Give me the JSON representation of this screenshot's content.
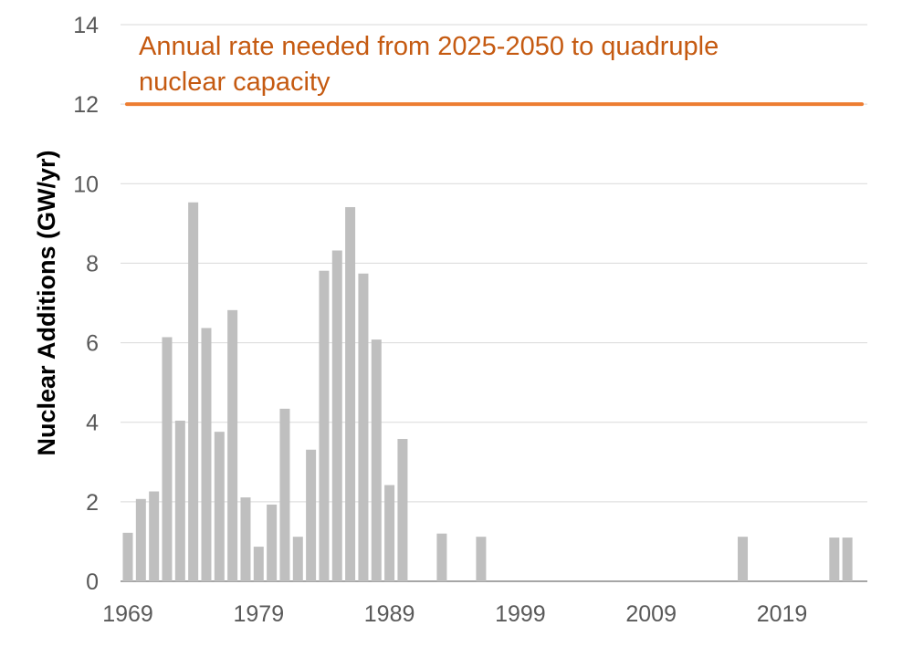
{
  "chart_data": {
    "type": "bar",
    "title": "",
    "xlabel": "",
    "ylabel": "Nuclear Additions (GW/yr)",
    "ylim": [
      0,
      14
    ],
    "xlim": [
      1969,
      2025
    ],
    "y_ticks": [
      "0",
      "2",
      "4",
      "6",
      "8",
      "10",
      "12",
      "14"
    ],
    "x_ticks": [
      "1969",
      "1979",
      "1989",
      "1999",
      "2009",
      "2019"
    ],
    "grid": true,
    "x": [
      1969,
      1970,
      1971,
      1972,
      1973,
      1974,
      1975,
      1976,
      1977,
      1978,
      1979,
      1980,
      1981,
      1982,
      1983,
      1984,
      1985,
      1986,
      1987,
      1988,
      1989,
      1990,
      1993,
      1996,
      2016,
      2023,
      2024
    ],
    "values": [
      1.22,
      2.07,
      2.26,
      6.14,
      4.04,
      9.53,
      6.37,
      3.76,
      6.82,
      2.11,
      0.87,
      1.93,
      4.34,
      1.12,
      3.31,
      7.81,
      8.32,
      9.41,
      7.74,
      6.08,
      2.42,
      3.58,
      1.2,
      1.12,
      1.12,
      1.1,
      1.1
    ],
    "bar_color": "#bfbfbf",
    "reference_line": {
      "value": 12,
      "label": "Annual rate needed from 2025-2050 to quadruple nuclear capacity",
      "label_lines": [
        "Annual rate needed from 2025-2050 to quadruple",
        "nuclear capacity"
      ],
      "color": "#ed7d31",
      "text_color": "#c55a11"
    }
  }
}
